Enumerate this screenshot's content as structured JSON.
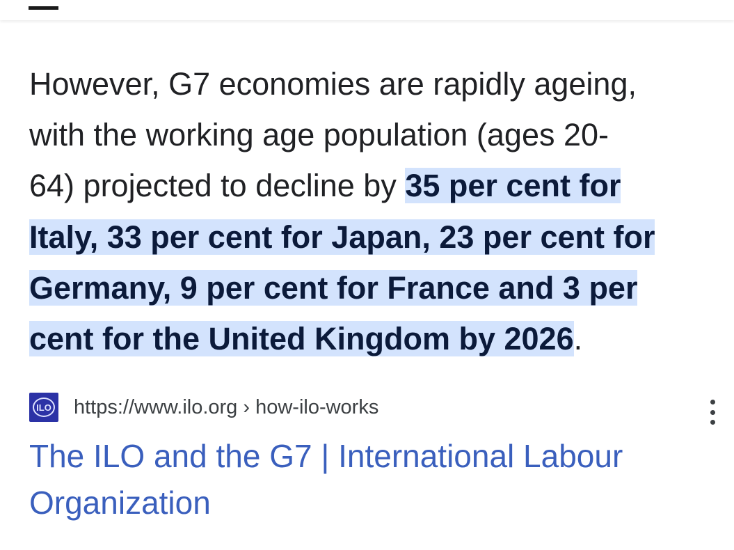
{
  "paragraph": {
    "lines": [
      {
        "plain": "However, G7 economies are rapidly ageing,",
        "highlight": "",
        "after": ""
      },
      {
        "plain": "with the working age population (ages 20-",
        "highlight": "",
        "after": ""
      },
      {
        "plain": "64) projected to decline by ",
        "highlight": "35 per cent for",
        "after": ""
      },
      {
        "plain": "",
        "highlight": "Italy, 33 per cent for Japan, 23 per cent for",
        "after": ""
      },
      {
        "plain": "",
        "highlight": "Germany, 9 per cent for France and 3 per",
        "after": ""
      },
      {
        "plain": "",
        "highlight": "cent for the United Kingdom by 2026",
        "after": "."
      }
    ]
  },
  "result": {
    "favicon_text": "ILO",
    "url": "https://www.ilo.org › how-ilo-works",
    "title_line1": "The ILO and the G7 | International Labour",
    "title_line2": "Organization"
  },
  "icons": {
    "menu": "more-vert-icon",
    "favicon": "ilo-logo-icon"
  },
  "colors": {
    "highlight": "#d3e3fd",
    "link": "#3a5fbd",
    "favicon_bg": "#2b32a6"
  }
}
